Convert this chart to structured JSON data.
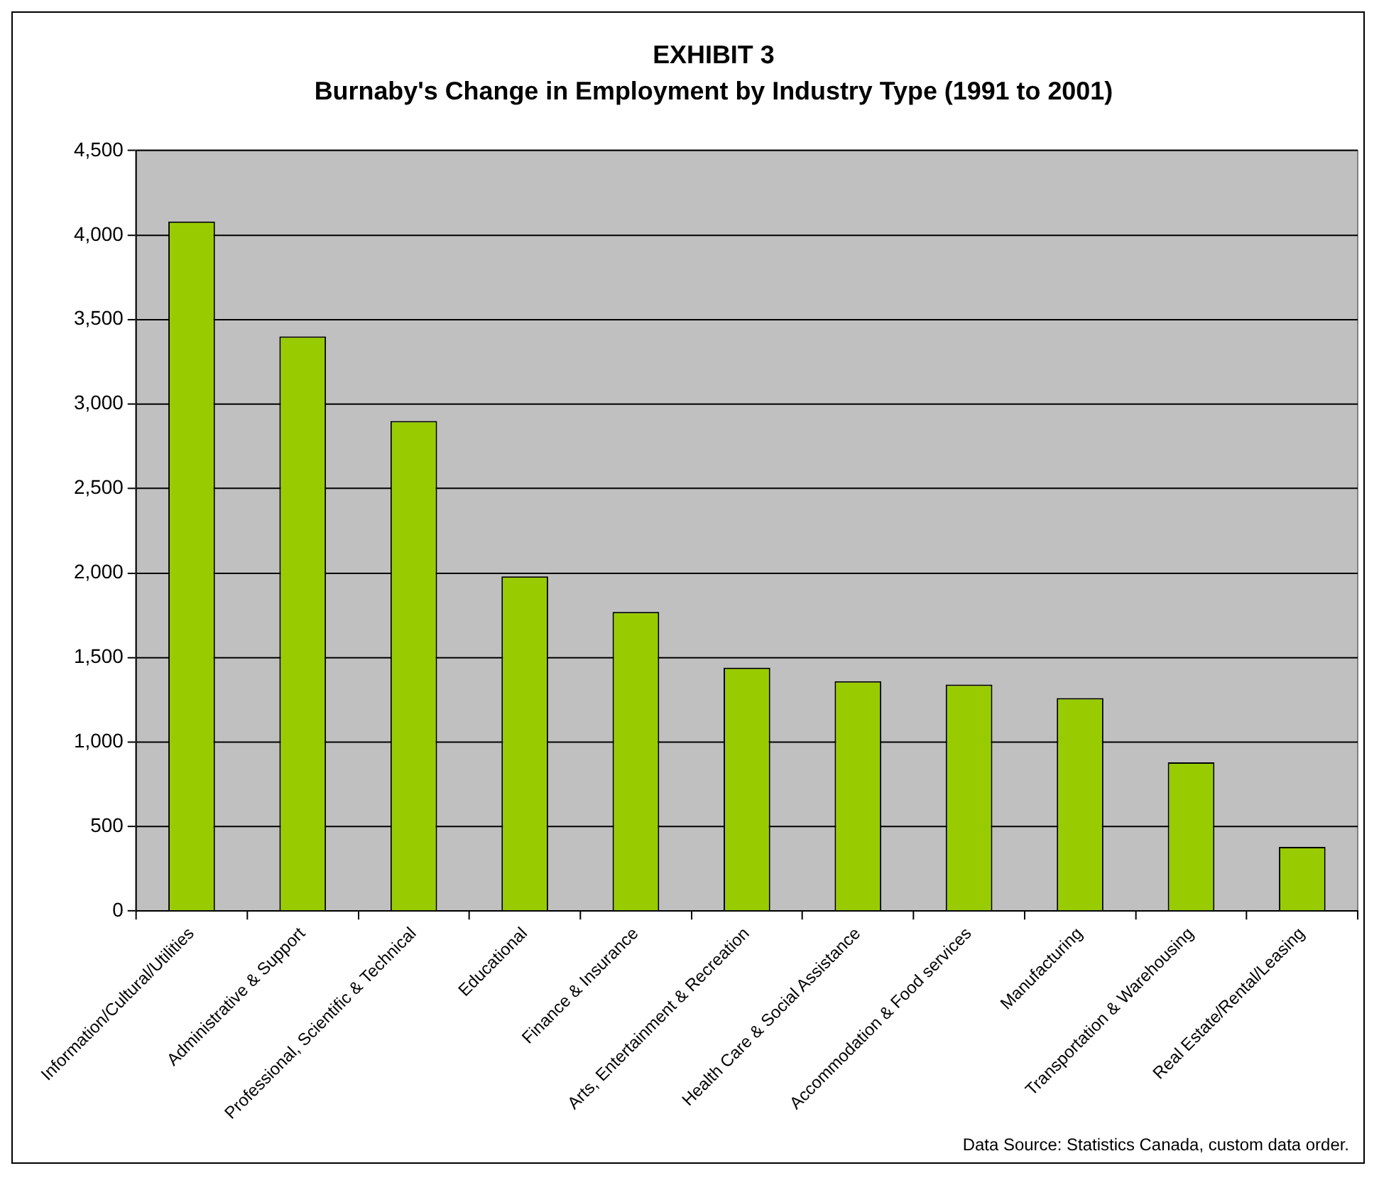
{
  "chart_data": {
    "type": "bar",
    "title": "EXHIBIT 3",
    "subtitle": "Burnaby's Change in Employment by Industry Type (1991 to 2001)",
    "categories": [
      "Information/Cultural/Utilities",
      "Administrative & Support",
      "Professional, Scientific & Technical",
      "Educational",
      "Finance & Insurance",
      "Arts, Entertainment & Recreation",
      "Health Care & Social Assistance",
      "Accommodation & Food services",
      "Manufacturing",
      "Transportation & Warehousing",
      "Real Estate/Rental/Leasing"
    ],
    "values": [
      4080,
      3400,
      2900,
      1980,
      1770,
      1440,
      1360,
      1340,
      1260,
      880,
      380
    ],
    "color": "#99cc00",
    "ylim": [
      0,
      4500
    ],
    "yticks": [
      0,
      500,
      {
        "value": 1000,
        "label": "1,000"
      },
      {
        "value": 1500,
        "label": "1,500"
      },
      {
        "value": 2000,
        "label": "2,000"
      },
      {
        "value": 2500,
        "label": "2,500"
      },
      {
        "value": 3000,
        "label": "3,000"
      },
      {
        "value": 3500,
        "label": "3,500"
      },
      {
        "value": 4000,
        "label": "4,000"
      },
      {
        "value": 4500,
        "label": "4,500"
      }
    ],
    "grid": "y",
    "legend": false,
    "annotations": [
      "Data Source: Statistics Canada, custom data order."
    ]
  }
}
